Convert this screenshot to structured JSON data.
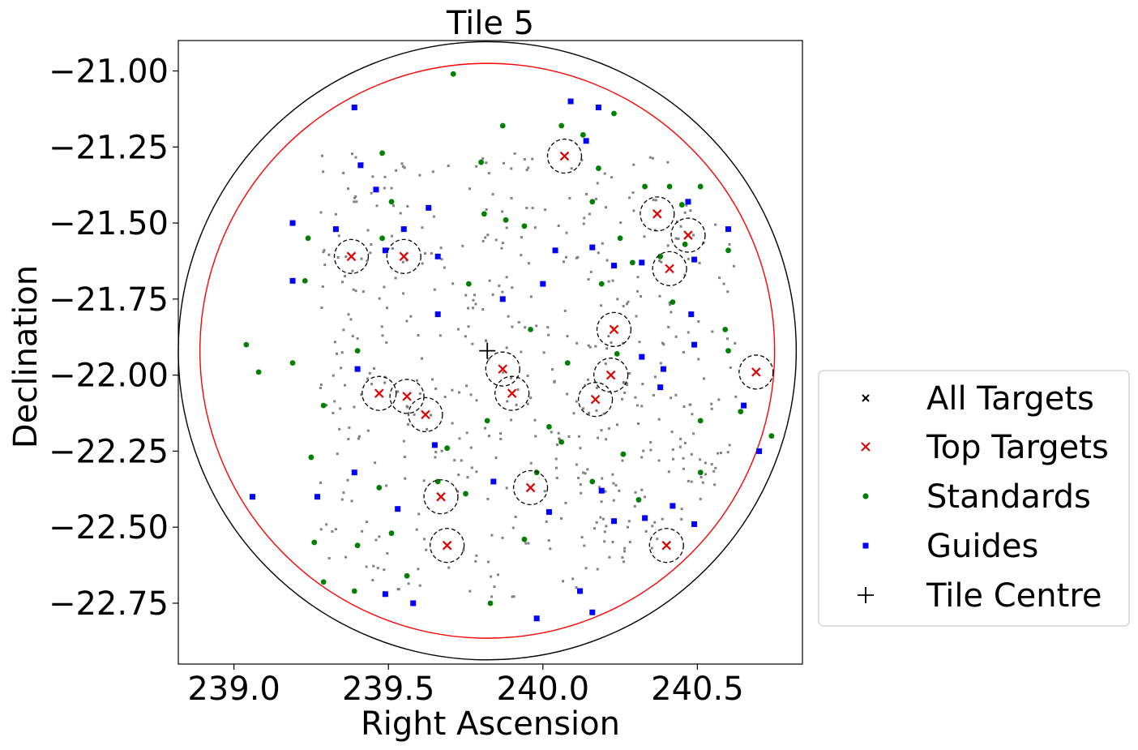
{
  "chart_data": {
    "type": "scatter",
    "title": "Tile 5",
    "xlabel": "Right Ascension",
    "ylabel": "Declination",
    "xlim": [
      238.82,
      240.84
    ],
    "ylim": [
      -22.95,
      -20.9
    ],
    "xticks": [
      239.0,
      239.5,
      240.0,
      240.5
    ],
    "xtick_labels": [
      "239.0",
      "239.5",
      "240.0",
      "240.5"
    ],
    "yticks": [
      -21.0,
      -21.25,
      -21.5,
      -21.75,
      -22.0,
      -22.25,
      -22.5,
      -22.75
    ],
    "ytick_labels": [
      "−21.00",
      "−21.25",
      "−21.50",
      "−21.75",
      "−22.00",
      "−22.25",
      "−22.50",
      "−22.75"
    ],
    "legend_position": "lower right, outside the axes",
    "grid": false,
    "tile_centre": [
      239.82,
      -21.92
    ],
    "outer_circle_radius_deg": 1.0,
    "inner_circle_radius_deg": 0.93,
    "top_target_circle_radius_deg": 0.055,
    "colors": {
      "all_targets": "#808080",
      "all_targets_legend": "#000000",
      "top_targets": "#e00000",
      "standards": "#008000",
      "guides": "#0000ff",
      "tile_centre": "#000000",
      "outer_circle": "#000000",
      "inner_circle": "#ff0000"
    },
    "series": [
      {
        "name": "All Targets",
        "marker": "x",
        "points": []
      },
      {
        "name": "Top Targets",
        "marker": "x",
        "points": [
          [
            239.38,
            -21.61
          ],
          [
            239.55,
            -21.61
          ],
          [
            240.07,
            -21.28
          ],
          [
            240.37,
            -21.47
          ],
          [
            240.47,
            -21.54
          ],
          [
            240.41,
            -21.65
          ],
          [
            240.23,
            -21.85
          ],
          [
            239.87,
            -21.98
          ],
          [
            239.9,
            -22.06
          ],
          [
            239.47,
            -22.06
          ],
          [
            239.56,
            -22.07
          ],
          [
            239.62,
            -22.13
          ],
          [
            240.22,
            -22.0
          ],
          [
            240.17,
            -22.08
          ],
          [
            240.69,
            -21.99
          ],
          [
            239.67,
            -22.4
          ],
          [
            239.96,
            -22.37
          ],
          [
            239.69,
            -22.56
          ],
          [
            240.4,
            -22.56
          ]
        ]
      },
      {
        "name": "Standards",
        "marker": "o",
        "points": [
          [
            239.71,
            -21.01
          ],
          [
            239.87,
            -21.18
          ],
          [
            240.06,
            -21.18
          ],
          [
            240.13,
            -21.21
          ],
          [
            240.23,
            -21.14
          ],
          [
            239.48,
            -21.27
          ],
          [
            239.8,
            -21.3
          ],
          [
            240.18,
            -21.32
          ],
          [
            239.51,
            -21.43
          ],
          [
            240.16,
            -21.43
          ],
          [
            240.33,
            -21.38
          ],
          [
            240.41,
            -21.38
          ],
          [
            240.51,
            -21.38
          ],
          [
            240.45,
            -21.44
          ],
          [
            239.81,
            -21.47
          ],
          [
            239.88,
            -21.49
          ],
          [
            239.94,
            -21.51
          ],
          [
            239.24,
            -21.55
          ],
          [
            239.48,
            -21.55
          ],
          [
            240.25,
            -21.55
          ],
          [
            240.46,
            -21.57
          ],
          [
            240.38,
            -21.61
          ],
          [
            240.6,
            -21.59
          ],
          [
            240.29,
            -21.63
          ],
          [
            239.23,
            -21.69
          ],
          [
            239.76,
            -21.7
          ],
          [
            240.19,
            -21.7
          ],
          [
            240.42,
            -21.76
          ],
          [
            239.96,
            -21.85
          ],
          [
            240.59,
            -21.85
          ],
          [
            239.04,
            -21.9
          ],
          [
            239.4,
            -21.92
          ],
          [
            240.6,
            -21.92
          ],
          [
            240.24,
            -21.93
          ],
          [
            240.08,
            -21.96
          ],
          [
            239.08,
            -21.99
          ],
          [
            239.19,
            -21.96
          ],
          [
            239.29,
            -22.1
          ],
          [
            239.82,
            -22.15
          ],
          [
            240.02,
            -22.17
          ],
          [
            240.51,
            -22.15
          ],
          [
            240.64,
            -22.12
          ],
          [
            240.74,
            -22.2
          ],
          [
            240.06,
            -22.22
          ],
          [
            240.26,
            -22.26
          ],
          [
            239.25,
            -22.27
          ],
          [
            239.69,
            -22.24
          ],
          [
            239.98,
            -22.32
          ],
          [
            240.51,
            -22.32
          ],
          [
            240.16,
            -22.35
          ],
          [
            239.47,
            -22.37
          ],
          [
            239.66,
            -22.35
          ],
          [
            239.75,
            -22.39
          ],
          [
            240.31,
            -22.41
          ],
          [
            239.4,
            -22.56
          ],
          [
            239.26,
            -22.55
          ],
          [
            239.51,
            -22.52
          ],
          [
            239.94,
            -22.54
          ],
          [
            239.56,
            -22.66
          ],
          [
            239.29,
            -22.68
          ],
          [
            239.39,
            -22.71
          ],
          [
            239.83,
            -22.75
          ]
        ]
      },
      {
        "name": "Guides",
        "marker": "s",
        "points": [
          [
            239.39,
            -21.12
          ],
          [
            240.09,
            -21.1
          ],
          [
            240.18,
            -21.12
          ],
          [
            240.14,
            -21.23
          ],
          [
            239.41,
            -21.31
          ],
          [
            239.46,
            -21.39
          ],
          [
            239.63,
            -21.45
          ],
          [
            239.19,
            -21.5
          ],
          [
            239.33,
            -21.52
          ],
          [
            239.55,
            -21.52
          ],
          [
            240.47,
            -21.43
          ],
          [
            240.6,
            -21.52
          ],
          [
            239.49,
            -21.59
          ],
          [
            239.66,
            -21.61
          ],
          [
            240.16,
            -21.58
          ],
          [
            240.23,
            -21.64
          ],
          [
            240.04,
            -21.59
          ],
          [
            239.19,
            -21.69
          ],
          [
            240.32,
            -21.63
          ],
          [
            240.49,
            -21.62
          ],
          [
            240.0,
            -21.7
          ],
          [
            239.66,
            -21.8
          ],
          [
            239.87,
            -21.75
          ],
          [
            240.48,
            -21.8
          ],
          [
            240.49,
            -21.9
          ],
          [
            239.4,
            -21.98
          ],
          [
            240.32,
            -21.94
          ],
          [
            240.39,
            -21.98
          ],
          [
            240.38,
            -22.04
          ],
          [
            240.65,
            -22.1
          ],
          [
            240.7,
            -22.25
          ],
          [
            239.65,
            -22.23
          ],
          [
            239.39,
            -22.32
          ],
          [
            239.27,
            -22.4
          ],
          [
            239.06,
            -22.4
          ],
          [
            239.84,
            -22.35
          ],
          [
            240.19,
            -22.38
          ],
          [
            239.53,
            -22.44
          ],
          [
            240.02,
            -22.45
          ],
          [
            240.23,
            -22.48
          ],
          [
            240.33,
            -22.47
          ],
          [
            240.42,
            -22.43
          ],
          [
            240.49,
            -22.49
          ],
          [
            239.49,
            -22.72
          ],
          [
            239.58,
            -22.75
          ],
          [
            240.12,
            -22.71
          ],
          [
            239.98,
            -22.8
          ],
          [
            240.16,
            -22.78
          ]
        ]
      },
      {
        "name": "Tile Centre",
        "marker": "+",
        "points": [
          [
            239.82,
            -21.92
          ]
        ]
      }
    ]
  }
}
